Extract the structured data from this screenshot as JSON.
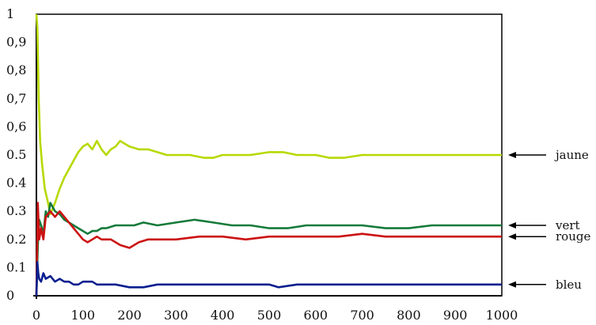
{
  "chart_data": {
    "type": "line",
    "title": "",
    "xlabel": "",
    "ylabel": "",
    "xlim": [
      0,
      1000
    ],
    "ylim": [
      0,
      1
    ],
    "xticks": [
      0,
      100,
      200,
      300,
      400,
      500,
      600,
      700,
      800,
      900,
      1000
    ],
    "yticks": [
      0,
      0.1,
      0.2,
      0.3,
      0.4,
      0.5,
      0.6,
      0.7,
      0.8,
      0.9,
      1
    ],
    "ytick_labels": [
      "0",
      "0.1",
      "0.2",
      "0.3",
      "0.4",
      "0.5",
      "0,6",
      "0,7",
      "0,8",
      "0,9",
      "1"
    ],
    "grid": true,
    "series": [
      {
        "name": "jaune",
        "color": "#b8d800",
        "x": [
          0,
          2,
          5,
          8,
          12,
          18,
          25,
          30,
          40,
          50,
          60,
          70,
          80,
          90,
          100,
          110,
          120,
          130,
          140,
          150,
          160,
          170,
          180,
          190,
          200,
          220,
          240,
          260,
          280,
          300,
          330,
          360,
          380,
          400,
          430,
          460,
          500,
          530,
          560,
          600,
          630,
          660,
          700,
          750,
          800,
          850,
          900,
          950,
          1000
        ],
        "y": [
          1.0,
          0.95,
          0.7,
          0.55,
          0.47,
          0.38,
          0.33,
          0.29,
          0.33,
          0.38,
          0.42,
          0.45,
          0.48,
          0.51,
          0.53,
          0.54,
          0.52,
          0.55,
          0.52,
          0.5,
          0.52,
          0.53,
          0.55,
          0.54,
          0.53,
          0.52,
          0.52,
          0.51,
          0.5,
          0.5,
          0.5,
          0.49,
          0.49,
          0.5,
          0.5,
          0.5,
          0.51,
          0.51,
          0.5,
          0.5,
          0.49,
          0.49,
          0.5,
          0.5,
          0.5,
          0.5,
          0.5,
          0.5,
          0.5
        ]
      },
      {
        "name": "vert",
        "color": "#157a3a",
        "x": [
          0,
          3,
          6,
          10,
          15,
          20,
          25,
          30,
          40,
          50,
          60,
          70,
          80,
          90,
          100,
          110,
          120,
          130,
          140,
          150,
          170,
          190,
          210,
          230,
          260,
          300,
          340,
          380,
          420,
          460,
          500,
          540,
          580,
          620,
          660,
          700,
          750,
          800,
          850,
          900,
          950,
          1000
        ],
        "y": [
          0.0,
          0.18,
          0.27,
          0.25,
          0.22,
          0.3,
          0.28,
          0.33,
          0.3,
          0.29,
          0.27,
          0.26,
          0.25,
          0.24,
          0.23,
          0.22,
          0.23,
          0.23,
          0.24,
          0.24,
          0.25,
          0.25,
          0.25,
          0.26,
          0.25,
          0.26,
          0.27,
          0.26,
          0.25,
          0.25,
          0.24,
          0.24,
          0.25,
          0.25,
          0.25,
          0.25,
          0.24,
          0.24,
          0.25,
          0.25,
          0.25,
          0.25
        ]
      },
      {
        "name": "rouge",
        "color": "#cc1111",
        "x": [
          0,
          3,
          6,
          10,
          15,
          20,
          30,
          40,
          50,
          60,
          70,
          80,
          90,
          100,
          110,
          120,
          130,
          140,
          160,
          180,
          200,
          220,
          240,
          260,
          280,
          300,
          350,
          400,
          450,
          500,
          550,
          600,
          650,
          700,
          750,
          800,
          850,
          900,
          950,
          1000
        ],
        "y": [
          0.0,
          0.33,
          0.2,
          0.24,
          0.2,
          0.28,
          0.3,
          0.28,
          0.3,
          0.28,
          0.26,
          0.24,
          0.22,
          0.2,
          0.19,
          0.2,
          0.21,
          0.2,
          0.2,
          0.18,
          0.17,
          0.19,
          0.2,
          0.2,
          0.2,
          0.2,
          0.21,
          0.21,
          0.2,
          0.21,
          0.21,
          0.21,
          0.21,
          0.22,
          0.21,
          0.21,
          0.21,
          0.21,
          0.21,
          0.21
        ]
      },
      {
        "name": "bleu",
        "color": "#0a1f8f",
        "x": [
          0,
          2,
          4,
          6,
          10,
          15,
          20,
          30,
          40,
          50,
          60,
          70,
          80,
          90,
          100,
          110,
          120,
          130,
          150,
          170,
          200,
          230,
          260,
          300,
          350,
          400,
          450,
          500,
          520,
          560,
          600,
          650,
          700,
          750,
          800,
          850,
          900,
          950,
          1000
        ],
        "y": [
          0.0,
          0.12,
          0.08,
          0.06,
          0.05,
          0.08,
          0.06,
          0.07,
          0.05,
          0.06,
          0.05,
          0.05,
          0.04,
          0.04,
          0.05,
          0.05,
          0.05,
          0.04,
          0.04,
          0.04,
          0.03,
          0.03,
          0.04,
          0.04,
          0.04,
          0.04,
          0.04,
          0.04,
          0.03,
          0.04,
          0.04,
          0.04,
          0.04,
          0.04,
          0.04,
          0.04,
          0.04,
          0.04,
          0.04
        ]
      }
    ],
    "annotations": [
      {
        "text": "jaune",
        "series": "jaune"
      },
      {
        "text": "vert",
        "series": "vert"
      },
      {
        "text": "rouge",
        "series": "rouge"
      },
      {
        "text": "bleu",
        "series": "bleu"
      }
    ]
  }
}
